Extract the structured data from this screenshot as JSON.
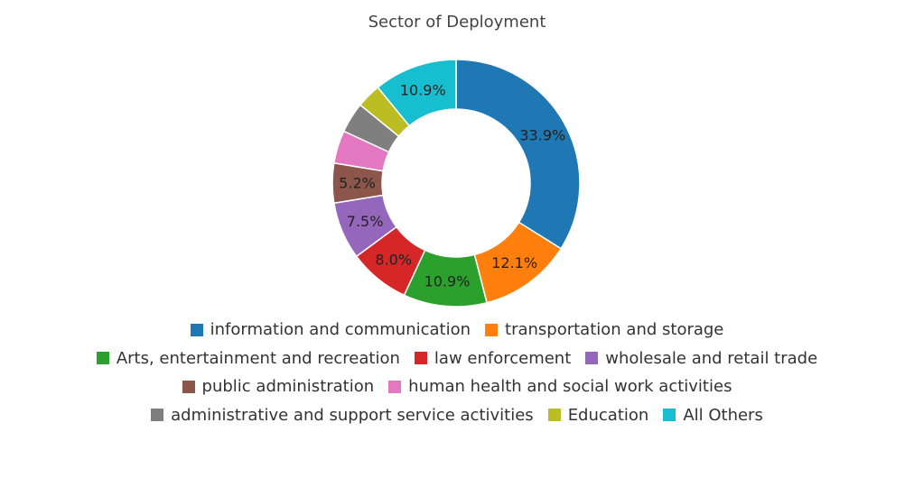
{
  "chart_data": {
    "type": "pie",
    "title": "Sector of Deployment",
    "donut": true,
    "legend_position": "bottom",
    "slices": [
      {
        "label": "information and communication",
        "value": 33.9,
        "color": "#1f77b4",
        "data_label": "33.9%"
      },
      {
        "label": "transportation and storage",
        "value": 12.1,
        "color": "#ff7f0e",
        "data_label": "12.1%"
      },
      {
        "label": "Arts, entertainment and recreation",
        "value": 10.9,
        "color": "#2ca02c",
        "data_label": "10.9%"
      },
      {
        "label": "law enforcement",
        "value": 8.0,
        "color": "#d62728",
        "data_label": "8.0%"
      },
      {
        "label": "wholesale and retail trade",
        "value": 7.5,
        "color": "#9467bd",
        "data_label": "7.5%"
      },
      {
        "label": "public administration",
        "value": 5.2,
        "color": "#8c564b",
        "data_label": "5.2%"
      },
      {
        "label": "human health and social work activities",
        "value": 4.3,
        "color": "#e377c2",
        "data_label": ""
      },
      {
        "label": "administrative and support service activities",
        "value": 4.0,
        "color": "#7f7f7f",
        "data_label": ""
      },
      {
        "label": "Education",
        "value": 3.2,
        "color": "#bcbd22",
        "data_label": ""
      },
      {
        "label": "All Others",
        "value": 10.9,
        "color": "#17becf",
        "data_label": "10.9%"
      }
    ],
    "legend_rows": [
      [
        0,
        1
      ],
      [
        2,
        3,
        4
      ],
      [
        5,
        6
      ],
      [
        7,
        8,
        9
      ]
    ]
  }
}
